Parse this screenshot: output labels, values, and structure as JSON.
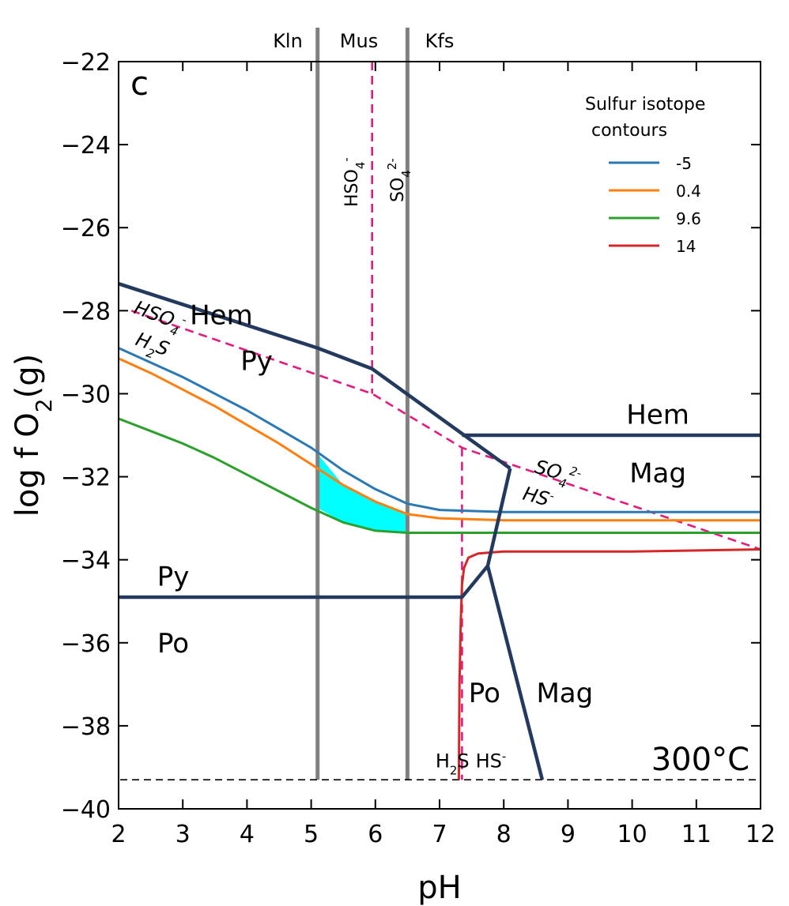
{
  "chart_data": {
    "type": "line",
    "panel_label": "c",
    "temperature_label": "300°C",
    "xlabel": "pH",
    "ylabel": "log f O2(g)",
    "xlim": [
      2,
      12
    ],
    "ylim": [
      -40,
      -22
    ],
    "xticks": [
      2,
      3,
      4,
      5,
      6,
      7,
      8,
      9,
      10,
      11,
      12
    ],
    "yticks": [
      -40,
      -38,
      -36,
      -34,
      -32,
      -30,
      -28,
      -26,
      -24,
      -22
    ],
    "mineral_zones_top": [
      "Kln",
      "Mus",
      "Kfs"
    ],
    "mineral_boundaries_ph": [
      5.1,
      6.5
    ],
    "legend": {
      "title_line1": "Sulfur isotope",
      "title_line2": "contours",
      "position": "top-right"
    },
    "series": [
      {
        "name": "-5",
        "color": "#2a78b4",
        "x": [
          2.0,
          2.5,
          3.0,
          3.5,
          4.0,
          4.5,
          5.0,
          5.5,
          6.0,
          6.5,
          7.0,
          8.0,
          10.0,
          12.0
        ],
        "y": [
          -28.9,
          -29.25,
          -29.6,
          -30.0,
          -30.4,
          -30.85,
          -31.3,
          -31.85,
          -32.3,
          -32.65,
          -32.8,
          -32.85,
          -32.85,
          -32.85
        ]
      },
      {
        "name": "0.4",
        "color": "#ff7f0e",
        "x": [
          2.0,
          2.5,
          3.0,
          3.5,
          4.0,
          4.5,
          5.0,
          5.5,
          6.0,
          6.5,
          7.0,
          8.0,
          10.0,
          12.0
        ],
        "y": [
          -29.15,
          -29.5,
          -29.9,
          -30.3,
          -30.75,
          -31.2,
          -31.7,
          -32.2,
          -32.6,
          -32.9,
          -33.0,
          -33.05,
          -33.05,
          -33.05
        ]
      },
      {
        "name": "9.6",
        "color": "#2ca02c",
        "x": [
          2.0,
          2.5,
          3.0,
          3.5,
          4.0,
          4.5,
          5.0,
          5.5,
          6.0,
          6.5,
          7.0,
          8.0,
          10.0,
          12.0
        ],
        "y": [
          -30.6,
          -30.9,
          -31.2,
          -31.55,
          -31.95,
          -32.35,
          -32.75,
          -33.1,
          -33.3,
          -33.35,
          -33.35,
          -33.35,
          -33.35,
          -33.35
        ]
      },
      {
        "name": "14",
        "color": "#d62728",
        "x": [
          7.3,
          7.31,
          7.33,
          7.35,
          7.38,
          7.45,
          7.6,
          8.0,
          9.0,
          10.0,
          12.0
        ],
        "y": [
          -39.3,
          -37.0,
          -35.5,
          -34.6,
          -34.2,
          -33.95,
          -33.85,
          -33.8,
          -33.8,
          -33.8,
          -33.75
        ]
      }
    ],
    "fill_region": {
      "color": "#00ffff",
      "x": [
        5.1,
        5.5,
        6.0,
        6.5,
        6.5,
        6.0,
        5.5,
        5.1
      ],
      "y": [
        -31.45,
        -32.2,
        -32.6,
        -32.9,
        -33.35,
        -33.3,
        -33.1,
        -32.75
      ]
    },
    "solid_boundaries": [
      {
        "x": [
          2.0,
          5.1,
          5.95,
          8.1
        ],
        "y": [
          -27.35,
          -28.9,
          -29.4,
          -31.8
        ]
      },
      {
        "x": [
          7.35,
          12.0
        ],
        "y": [
          -31.0,
          -31.0
        ]
      },
      {
        "x": [
          2.0,
          7.35,
          7.75
        ],
        "y": [
          -34.9,
          -34.9,
          -34.15
        ]
      },
      {
        "x": [
          8.1,
          7.75,
          8.6
        ],
        "y": [
          -31.8,
          -34.15,
          -39.3
        ]
      }
    ],
    "dashed_boundaries": [
      {
        "x": [
          5.95,
          5.95
        ],
        "y": [
          -22.0,
          -30.0
        ]
      },
      {
        "x": [
          2.2,
          5.95,
          7.35,
          12.0
        ],
        "y": [
          -28.0,
          -30.0,
          -31.3,
          -33.75
        ]
      },
      {
        "x": [
          7.35,
          7.35
        ],
        "y": [
          -31.3,
          -39.3
        ]
      }
    ],
    "baseline_dashed_y": -39.3,
    "field_labels": [
      {
        "text": "Hem",
        "x": 3.6,
        "y": -28.1
      },
      {
        "text": "Py",
        "x": 4.15,
        "y": -29.2
      },
      {
        "text": "Hem",
        "x": 10.4,
        "y": -30.5
      },
      {
        "text": "Mag",
        "x": 10.4,
        "y": -31.9
      },
      {
        "text": "Py",
        "x": 2.85,
        "y": -34.4
      },
      {
        "text": "Po",
        "x": 2.85,
        "y": -36.0
      },
      {
        "text": "Po",
        "x": 7.7,
        "y": -37.2
      },
      {
        "text": "Mag",
        "x": 8.95,
        "y": -37.2
      }
    ],
    "species_labels": [
      {
        "main": "H",
        "sub": "2",
        "post": "S",
        "x": 7.2,
        "y": -38.85
      },
      {
        "main": "HS",
        "sup": "-",
        "x": 7.8,
        "y": -38.85
      }
    ]
  }
}
